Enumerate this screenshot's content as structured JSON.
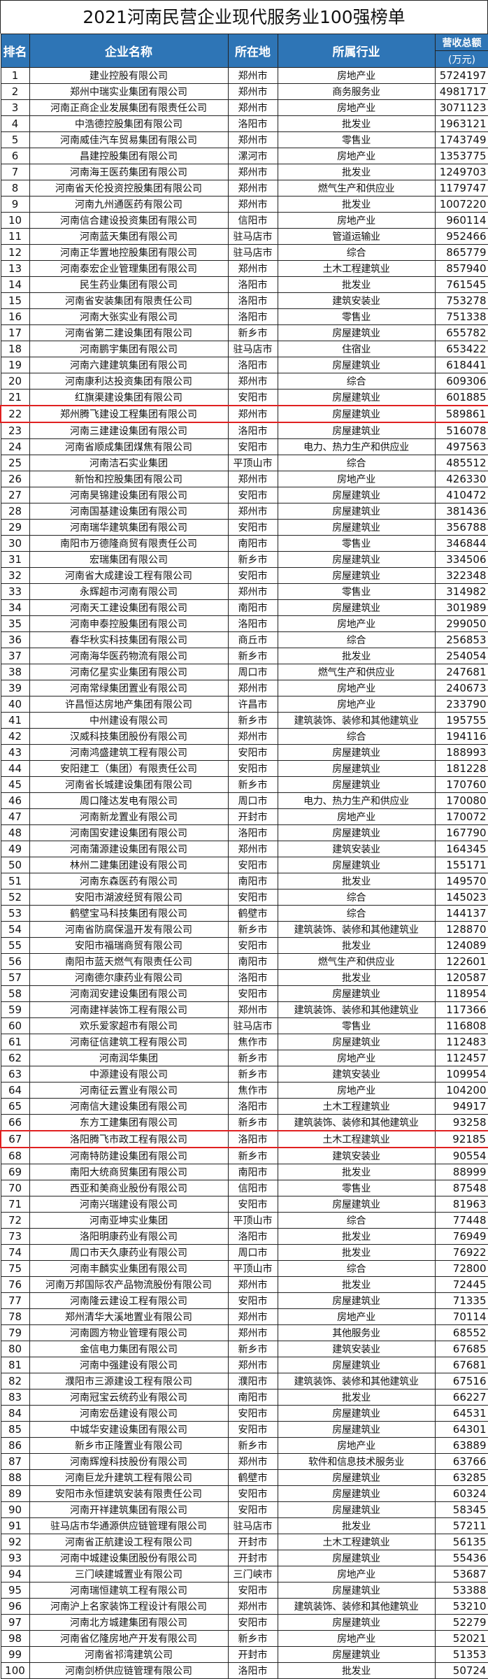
{
  "title": "2021河南民营企业现代服务业100强榜单",
  "headers": {
    "rank": "排名",
    "name": "企业名称",
    "city": "所在地",
    "industry": "所属行业",
    "revenue": "营收总额",
    "revenue_unit": "(万元)"
  },
  "highlight_color": "#e02020",
  "header_color": "#2e75b6",
  "highlighted_ranks": [
    22,
    67
  ],
  "rows": [
    [
      "1",
      "建业控股有限公司",
      "郑州市",
      "房地产业",
      "5724197"
    ],
    [
      "2",
      "郑州中瑞实业集团有限公司",
      "郑州市",
      "商务服务业",
      "4981717"
    ],
    [
      "3",
      "河南正商企业发展集团有限责任公司",
      "郑州市",
      "房地产业",
      "3071123"
    ],
    [
      "4",
      "中浩德控股集团有限公司",
      "洛阳市",
      "批发业",
      "1963121"
    ],
    [
      "5",
      "河南威佳汽车贸易集团有限公司",
      "郑州市",
      "零售业",
      "1743749"
    ],
    [
      "6",
      "昌建控股集团有限公司",
      "漯河市",
      "房地产业",
      "1353775"
    ],
    [
      "7",
      "河南海王医药集团有限公司",
      "郑州市",
      "批发业",
      "1249703"
    ],
    [
      "8",
      "河南省天伦投资控股集团有限公司",
      "郑州市",
      "燃气生产和供应业",
      "1179747"
    ],
    [
      "9",
      "河南九州通医药有限公司",
      "郑州市",
      "批发业",
      "1007220"
    ],
    [
      "10",
      "河南信合建设投资集团有限公司",
      "信阳市",
      "房地产业",
      "960114"
    ],
    [
      "11",
      "河南蓝天集团有限公司",
      "驻马店市",
      "管道运输业",
      "952466"
    ],
    [
      "12",
      "河南正华置地控股集团有限公司",
      "驻马店市",
      "综合",
      "865779"
    ],
    [
      "13",
      "河南泰宏企业管理集团有限公司",
      "郑州市",
      "土木工程建筑业",
      "857940"
    ],
    [
      "14",
      "民生药业集团有限公司",
      "洛阳市",
      "批发业",
      "761545"
    ],
    [
      "15",
      "河南省安装集团有限责任公司",
      "洛阳市",
      "建筑安装业",
      "753278"
    ],
    [
      "16",
      "河南大张实业有限公司",
      "洛阳市",
      "零售业",
      "751338"
    ],
    [
      "17",
      "河南省第二建设集团有限公司",
      "新乡市",
      "房屋建筑业",
      "655782"
    ],
    [
      "18",
      "河南鹏宇集团有限公司",
      "驻马店市",
      "住宿业",
      "653422"
    ],
    [
      "19",
      "河南六建建筑集团有限公司",
      "洛阳市",
      "房屋建筑业",
      "618441"
    ],
    [
      "20",
      "河南康利达投资集团有限公司",
      "郑州市",
      "综合",
      "609306"
    ],
    [
      "21",
      "红旗渠建设集团有限公司",
      "安阳市",
      "房屋建筑业",
      "601885"
    ],
    [
      "22",
      "郑州腾飞建设工程集团有限公司",
      "郑州市",
      "房屋建筑业",
      "589861"
    ],
    [
      "23",
      "河南三建建设集团有限公司",
      "洛阳市",
      "房屋建筑业",
      "516078"
    ],
    [
      "24",
      "河南省顺成集团煤焦有限公司",
      "安阳市",
      "电力、热力生产和供应业",
      "497563"
    ],
    [
      "25",
      "河南洁石实业集团",
      "平顶山市",
      "综合",
      "485512"
    ],
    [
      "26",
      "新怡和控股集团有限公司",
      "郑州市",
      "房地产业",
      "426330"
    ],
    [
      "27",
      "河南昊锦建设集团有限公司",
      "安阳市",
      "房屋建筑业",
      "410472"
    ],
    [
      "28",
      "河南国基建设集团有限公司",
      "郑州市",
      "房屋建筑业",
      "381436"
    ],
    [
      "29",
      "河南瑞华建筑集团有限公司",
      "安阳市",
      "房屋建筑业",
      "356788"
    ],
    [
      "30",
      "南阳市万德隆商贸有限责任公司",
      "南阳市",
      "零售业",
      "346844"
    ],
    [
      "31",
      "宏瑞集团有限公司",
      "新乡市",
      "房屋建筑业",
      "334506"
    ],
    [
      "32",
      "河南省大成建设工程有限公司",
      "安阳市",
      "房屋建筑业",
      "322348"
    ],
    [
      "33",
      "永辉超市河南有限公司",
      "郑州市",
      "零售业",
      "314982"
    ],
    [
      "34",
      "河南天工建设集团有限公司",
      "南阳市",
      "房屋建筑业",
      "301989"
    ],
    [
      "35",
      "河南申泰控股集团有限公司",
      "洛阳市",
      "房地产业",
      "299050"
    ],
    [
      "36",
      "春华秋实科技集团有限公司",
      "商丘市",
      "综合",
      "256853"
    ],
    [
      "37",
      "河南海华医药物流有限公司",
      "新乡市",
      "批发业",
      "254054"
    ],
    [
      "38",
      "河南亿星实业集团有限公司",
      "周口市",
      "燃气生产和供应业",
      "247681"
    ],
    [
      "39",
      "河南常绿集团置业有限公司",
      "郑州市",
      "房地产业",
      "240673"
    ],
    [
      "40",
      "许昌恒达房地产集团有限公司",
      "许昌市",
      "房地产业",
      "233790"
    ],
    [
      "41",
      "中州建设有限公司",
      "新乡市",
      "建筑装饰、装修和其他建筑业",
      "195755"
    ],
    [
      "42",
      "汉威科技集团股份有限公司",
      "郑州市",
      "综合",
      "194116"
    ],
    [
      "43",
      "河南鸿盛建筑工程有限公司",
      "安阳市",
      "房屋建筑业",
      "188993"
    ],
    [
      "44",
      "安阳建工（集团）有限责任公司",
      "安阳市",
      "房屋建筑业",
      "181228"
    ],
    [
      "45",
      "河南省长城建设集团有限公司",
      "新乡市",
      "房屋建筑业",
      "170760"
    ],
    [
      "46",
      "周口隆达发电有限公司",
      "周口市",
      "电力、热力生产和供应业",
      "170080"
    ],
    [
      "47",
      "河南新龙置业有限公司",
      "开封市",
      "房地产业",
      "170072"
    ],
    [
      "48",
      "河南国安建设集团有限公司",
      "洛阳市",
      "房屋建筑业",
      "167790"
    ],
    [
      "49",
      "河南蒲源建设集团有限公司",
      "郑州市",
      "建筑安装业",
      "164345"
    ],
    [
      "50",
      "林州二建集团建设有限公司",
      "安阳市",
      "房屋建筑业",
      "155171"
    ],
    [
      "51",
      "河南东森医药有限公司",
      "南阳市",
      "批发业",
      "149570"
    ],
    [
      "52",
      "安阳市湖波经贸有限公司",
      "安阳市",
      "综合",
      "145023"
    ],
    [
      "53",
      "鹤壁宝马科技集团有限公司",
      "鹤壁市",
      "综合",
      "144137"
    ],
    [
      "54",
      "河南省防腐保温开发有限公司",
      "新乡市",
      "建筑装饰、装修和其他建筑业",
      "128870"
    ],
    [
      "55",
      "安阳市福瑞商贸有限公司",
      "安阳市",
      "批发业",
      "124089"
    ],
    [
      "56",
      "南阳市蓝天燃气有限责任公司",
      "南阳市",
      "燃气生产和供应业",
      "122601"
    ],
    [
      "57",
      "河南德尔康药业有限公司",
      "洛阳市",
      "批发业",
      "120587"
    ],
    [
      "58",
      "河南润安建设集团有限公司",
      "安阳市",
      "房屋建筑业",
      "118954"
    ],
    [
      "59",
      "河南建祥装饰工程有限公司",
      "郑州市",
      "建筑装饰、装修和其他建筑业",
      "117366"
    ],
    [
      "60",
      "欢乐爱家超市有限公司",
      "驻马店市",
      "零售业",
      "116808"
    ],
    [
      "61",
      "河南征信建筑工程有限公司",
      "焦作市",
      "房屋建筑业",
      "112483"
    ],
    [
      "62",
      "河南润华集团",
      "新乡市",
      "房地产业",
      "112457"
    ],
    [
      "63",
      "中源建设有限公司",
      "新乡市",
      "建筑安装业",
      "109954"
    ],
    [
      "64",
      "河南征云置业有限公司",
      "焦作市",
      "房地产业",
      "104200"
    ],
    [
      "65",
      "河南信大建设集团有限公司",
      "洛阳市",
      "土木工程建筑业",
      "94917"
    ],
    [
      "66",
      "东方工建集团有限公司",
      "新乡市",
      "建筑装饰、装修和其他建筑业",
      "93258"
    ],
    [
      "67",
      "洛阳腾飞市政工程有限公司",
      "洛阳市",
      "土木工程建筑业",
      "92185"
    ],
    [
      "68",
      "河南特防建设集团有限公司",
      "新乡市",
      "建筑安装业",
      "90554"
    ],
    [
      "69",
      "南阳大统商贸集团有限公司",
      "南阳市",
      "批发业",
      "88999"
    ],
    [
      "70",
      "西亚和美商业股份有限公司",
      "信阳市",
      "零售业",
      "87548"
    ],
    [
      "71",
      "河南兴瑞建设有限公司",
      "安阳市",
      "房屋建筑业",
      "81963"
    ],
    [
      "72",
      "河南亚坤实业集团",
      "平顶山市",
      "综合",
      "77448"
    ],
    [
      "73",
      "洛阳明康药业有限公司",
      "洛阳市",
      "批发业",
      "76949"
    ],
    [
      "74",
      "周口市天久康药业有限公司",
      "周口市",
      "批发业",
      "76922"
    ],
    [
      "75",
      "河南丰麟实业集团有限公司",
      "平顶山市",
      "综合",
      "72800"
    ],
    [
      "76",
      "河南万邦国际农产品物流股份有限公司",
      "郑州市",
      "批发业",
      "72445"
    ],
    [
      "77",
      "河南隆云建设工程有限公司",
      "安阳市",
      "房屋建筑业",
      "71335"
    ],
    [
      "78",
      "郑州清华大溪地置业有限公司",
      "郑州市",
      "房地产业",
      "70114"
    ],
    [
      "79",
      "河南圆方物业管理有限公司",
      "郑州市",
      "其他服务业",
      "68552"
    ],
    [
      "80",
      "金信电力集团有限公司",
      "新乡市",
      "建筑安装业",
      "67685"
    ],
    [
      "81",
      "河南中强建设有限公司",
      "郑州市",
      "房屋建筑业",
      "67681"
    ],
    [
      "82",
      "濮阳市三源建设工程有限公司",
      "濮阳市",
      "建筑装饰、装修和其他建筑业",
      "67516"
    ],
    [
      "83",
      "河南冠宝云统药业有限公司",
      "南阳市",
      "批发业",
      "66227"
    ],
    [
      "84",
      "河南宏岳建设有限公司",
      "安阳市",
      "房屋建筑业",
      "64531"
    ],
    [
      "85",
      "中城华安建设集团有限公司",
      "安阳市",
      "房屋建筑业",
      "64301"
    ],
    [
      "86",
      "新乡市正隆置业有限公司",
      "新乡市",
      "房地产业",
      "63889"
    ],
    [
      "87",
      "河南辉煌科技股份有限公司",
      "郑州市",
      "软件和信息技术服务业",
      "63766"
    ],
    [
      "88",
      "河南巨龙升建筑工程有限公司",
      "鹤壁市",
      "房屋建筑业",
      "63285"
    ],
    [
      "89",
      "安阳市永恒建筑安装有限责任公司",
      "安阳市",
      "房屋建筑业",
      "60324"
    ],
    [
      "90",
      "河南开祥建筑集团有限公司",
      "安阳市",
      "房屋建筑业",
      "58345"
    ],
    [
      "91",
      "驻马店市华通源供应链管理有限公司",
      "驻马店市",
      "批发业",
      "57211"
    ],
    [
      "92",
      "河南省正航建设工程有限公司",
      "开封市",
      "土木工程建筑业",
      "56135"
    ],
    [
      "93",
      "河南中城建设集团股份有限公司",
      "开封市",
      "房屋建筑业",
      "55436"
    ],
    [
      "94",
      "三门峡建城置业有限公司",
      "三门峡市",
      "房地产业",
      "53687"
    ],
    [
      "95",
      "河南瑞恒建筑工程有限公司",
      "安阳市",
      "房屋建筑业",
      "53388"
    ],
    [
      "96",
      "河南沪上名家装饰工程设计有限公司",
      "郑州市",
      "建筑装饰、装修和其他建筑业",
      "53210"
    ],
    [
      "97",
      "河南北方城建集团有限公司",
      "安阳市",
      "房屋建筑业",
      "52279"
    ],
    [
      "98",
      "河南省亿隆房地产开发有限公司",
      "新乡市",
      "房地产业",
      "52021"
    ],
    [
      "99",
      "河南省祁湾建筑公司",
      "开封市",
      "房屋建筑业",
      "51353"
    ],
    [
      "100",
      "河南剑桥供应链管理有限公司",
      "洛阳市",
      "批发业",
      "50724"
    ]
  ]
}
